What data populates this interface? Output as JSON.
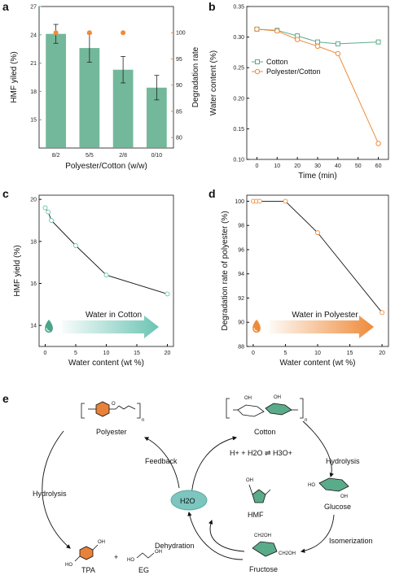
{
  "panels": {
    "a": "a",
    "b": "b",
    "c": "c",
    "d": "d",
    "e": "e"
  },
  "colors": {
    "green": "#5aab8a",
    "orange": "#ee8b3a",
    "dark": "#111111",
    "blue_arrow": "#6bc4b4"
  },
  "chart_data": [
    {
      "id": "a",
      "type": "bar",
      "categories": [
        "8/2",
        "5/5",
        "2/8",
        "0/10"
      ],
      "values": [
        24.1,
        22.6,
        20.3,
        18.4
      ],
      "errors": [
        1.0,
        1.5,
        1.4,
        1.3
      ],
      "xlabel": "Polyester/Cotton (w/w)",
      "ylabel": "HMF yiled (%)",
      "ylim": [
        12,
        27
      ],
      "yticks": [
        15,
        18,
        21,
        24,
        27
      ],
      "y2label": "Degradation rate\nof polyester (%)",
      "y2lim": [
        78,
        105
      ],
      "y2ticks": [
        80,
        85,
        90,
        95,
        100
      ],
      "y2_values": [
        100,
        100,
        100,
        null
      ],
      "tick_labels_y": [
        "15",
        "18",
        "21",
        "24",
        "27"
      ],
      "tick_labels_y2": [
        "80",
        "85",
        "90",
        "95",
        "100"
      ]
    },
    {
      "id": "b",
      "type": "line",
      "xlabel": "Time (min)",
      "ylabel": "Water content (%)",
      "xlim": [
        -5,
        65
      ],
      "ylim": [
        0.1,
        0.35
      ],
      "xticks": [
        0,
        10,
        20,
        30,
        40,
        50,
        60
      ],
      "yticks": [
        0.1,
        0.15,
        0.2,
        0.25,
        0.3,
        0.35
      ],
      "tick_labels_x": [
        "0",
        "10",
        "20",
        "30",
        "40",
        "50",
        "60"
      ],
      "tick_labels_y": [
        "0.10",
        "0.15",
        "0.20",
        "0.25",
        "0.30",
        "0.35"
      ],
      "series": [
        {
          "name": "Cotton",
          "x": [
            0,
            10,
            20,
            30,
            40,
            60
          ],
          "y": [
            0.313,
            0.311,
            0.302,
            0.292,
            0.289,
            0.292
          ]
        },
        {
          "name": "Polyester/Cotton",
          "x": [
            0,
            10,
            20,
            30,
            40,
            60
          ],
          "y": [
            0.313,
            0.31,
            0.296,
            0.285,
            0.273,
            0.126
          ]
        }
      ]
    },
    {
      "id": "c",
      "type": "line",
      "xlabel": "Water content (wt %)",
      "ylabel": "HMF yield (%)",
      "xlim": [
        -1,
        21
      ],
      "ylim": [
        13,
        20.2
      ],
      "xticks": [
        0,
        5,
        10,
        15,
        20
      ],
      "yticks": [
        14,
        16,
        18,
        20
      ],
      "tick_labels_x": [
        "0",
        "5",
        "10",
        "15",
        "20"
      ],
      "tick_labels_y": [
        "14",
        "16",
        "18",
        "20"
      ],
      "series": [
        {
          "x": [
            0,
            0.5,
            1,
            5,
            10,
            20
          ],
          "y": [
            19.6,
            19.4,
            19.0,
            17.8,
            16.4,
            15.5
          ]
        }
      ],
      "arrow_label": "Water in Cotton"
    },
    {
      "id": "d",
      "type": "line",
      "xlabel": "Water content (wt %)",
      "ylabel": "Degradation rate of polyester (%)",
      "xlim": [
        -1,
        21
      ],
      "ylim": [
        88,
        100.5
      ],
      "xticks": [
        0,
        5,
        10,
        15,
        20
      ],
      "yticks": [
        88,
        90,
        92,
        94,
        96,
        98,
        100
      ],
      "tick_labels_x": [
        "0",
        "5",
        "10",
        "15",
        "20"
      ],
      "tick_labels_y": [
        "88",
        "90",
        "92",
        "94",
        "96",
        "98",
        "100"
      ],
      "series": [
        {
          "x": [
            0,
            0.5,
            1,
            5,
            10,
            20
          ],
          "y": [
            100,
            100,
            100,
            100,
            97.4,
            90.8
          ]
        }
      ],
      "arrow_label": "Water in Polyester"
    }
  ],
  "scheme": {
    "polyester": "Polyester",
    "cotton": "Cotton",
    "glucose": "Glucose",
    "fructose": "Fructose",
    "hmf": "HMF",
    "tpa": "TPA",
    "eg": "EG",
    "water": "H2O",
    "plus": "+",
    "hydrolysis_left": "Hydrolysis",
    "hydrolysis_right": "Hydrolysis",
    "feedback": "Feedback",
    "dehydration": "Dehydration",
    "isomerization": "Isomerization",
    "equilibrium": "H+ + H2O ⇌ H3O+",
    "n": "n",
    "oh": "OH",
    "ch2oh": "CH2OH",
    "ho": "HO",
    "o": "O"
  }
}
